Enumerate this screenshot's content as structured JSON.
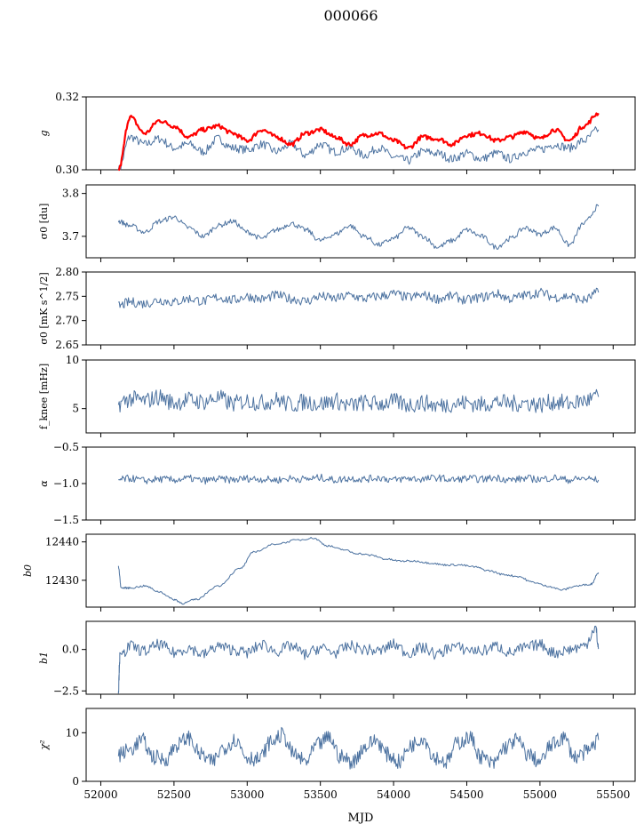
{
  "figure": {
    "title": "000066",
    "xlabel": "MJD"
  },
  "colors": {
    "series": "#4c72a0",
    "highlight": "#ff0000",
    "axis": "#000000"
  },
  "chart_data": [
    {
      "type": "line",
      "ylabel": "g",
      "ylim": [
        0.3,
        0.32
      ],
      "yticks": [
        "0.30",
        "0.32"
      ],
      "xlim": [
        51900,
        55650
      ],
      "series": [
        {
          "x": [
            52120,
            52200,
            52300,
            52400,
            52500,
            52600,
            52700,
            52800,
            52900,
            53000,
            53100,
            53200,
            53300,
            53400,
            53500,
            53600,
            53700,
            53800,
            53900,
            54000,
            54100,
            54200,
            54300,
            54400,
            54500,
            54600,
            54700,
            54800,
            54900,
            55000,
            55100,
            55200,
            55300,
            55400
          ],
          "y": [
            0.3,
            0.309,
            0.307,
            0.3085,
            0.306,
            0.307,
            0.305,
            0.3085,
            0.306,
            0.3055,
            0.307,
            0.305,
            0.307,
            0.304,
            0.307,
            0.305,
            0.306,
            0.304,
            0.306,
            0.3035,
            0.3025,
            0.305,
            0.3045,
            0.303,
            0.3045,
            0.303,
            0.3045,
            0.303,
            0.305,
            0.3055,
            0.307,
            0.306,
            0.308,
            0.311
          ]
        },
        {
          "x": [
            52120,
            52200,
            52300,
            52400,
            52500,
            52600,
            52700,
            52800,
            52900,
            53000,
            53100,
            53200,
            53300,
            53400,
            53500,
            53600,
            53700,
            53800,
            53900,
            54000,
            54100,
            54200,
            54300,
            54400,
            54500,
            54600,
            54700,
            54800,
            54900,
            55000,
            55100,
            55200,
            55300,
            55400
          ],
          "y": [
            0.3,
            0.3145,
            0.31,
            0.3135,
            0.312,
            0.309,
            0.311,
            0.312,
            0.31,
            0.308,
            0.311,
            0.309,
            0.307,
            0.31,
            0.311,
            0.309,
            0.307,
            0.3095,
            0.31,
            0.308,
            0.306,
            0.309,
            0.3085,
            0.307,
            0.3095,
            0.31,
            0.308,
            0.309,
            0.3105,
            0.3085,
            0.311,
            0.308,
            0.312,
            0.3155
          ]
        }
      ]
    },
    {
      "type": "line",
      "ylabel": "σ0 [du]",
      "ylim": [
        3.65,
        3.82
      ],
      "yticks": [
        "3.7",
        "3.8"
      ],
      "xlim": [
        51900,
        55650
      ],
      "series": [
        {
          "x": [
            52120,
            52200,
            52300,
            52400,
            52500,
            52600,
            52700,
            52800,
            52900,
            53000,
            53100,
            53200,
            53300,
            53400,
            53500,
            53600,
            53700,
            53800,
            53900,
            54000,
            54100,
            54200,
            54300,
            54400,
            54500,
            54600,
            54700,
            54800,
            54900,
            55000,
            55100,
            55200,
            55300,
            55400
          ],
          "y": [
            3.735,
            3.725,
            3.71,
            3.735,
            3.745,
            3.72,
            3.7,
            3.725,
            3.735,
            3.71,
            3.695,
            3.715,
            3.73,
            3.715,
            3.69,
            3.705,
            3.725,
            3.7,
            3.68,
            3.695,
            3.72,
            3.7,
            3.675,
            3.69,
            3.715,
            3.7,
            3.675,
            3.695,
            3.72,
            3.705,
            3.72,
            3.68,
            3.73,
            3.77
          ]
        }
      ]
    },
    {
      "type": "line",
      "ylabel": "σ0 [mK s^1/2]",
      "ylim": [
        2.65,
        2.8
      ],
      "yticks": [
        "2.65",
        "2.70",
        "2.75",
        "2.80"
      ],
      "xlim": [
        51900,
        55650
      ],
      "series": [
        {
          "x": [
            52120,
            52200,
            52300,
            52400,
            52500,
            52600,
            52700,
            52800,
            52900,
            53000,
            53100,
            53200,
            53300,
            53400,
            53500,
            53600,
            53700,
            53800,
            53900,
            54000,
            54100,
            54200,
            54300,
            54400,
            54500,
            54600,
            54700,
            54800,
            54900,
            55000,
            55100,
            55200,
            55300,
            55400
          ],
          "y": [
            2.73,
            2.738,
            2.735,
            2.742,
            2.738,
            2.745,
            2.74,
            2.748,
            2.742,
            2.75,
            2.744,
            2.752,
            2.745,
            2.74,
            2.75,
            2.745,
            2.752,
            2.745,
            2.75,
            2.755,
            2.748,
            2.752,
            2.745,
            2.75,
            2.742,
            2.748,
            2.755,
            2.745,
            2.752,
            2.758,
            2.748,
            2.75,
            2.742,
            2.758
          ]
        }
      ]
    },
    {
      "type": "line",
      "ylabel": "f_knee [mHz]",
      "ylim": [
        2.5,
        10
      ],
      "yticks": [
        "5",
        "10"
      ],
      "xlim": [
        51900,
        55650
      ],
      "series": [
        {
          "x": [
            52120,
            52200,
            52300,
            52400,
            52500,
            52600,
            52700,
            52800,
            52900,
            53000,
            53100,
            53200,
            53300,
            53400,
            53500,
            53600,
            53700,
            53800,
            53900,
            54000,
            54100,
            54200,
            54300,
            54400,
            54500,
            54600,
            54700,
            54800,
            54900,
            55000,
            55100,
            55200,
            55300,
            55400
          ],
          "y": [
            5.5,
            6.0,
            5.8,
            6.2,
            5.6,
            5.9,
            5.7,
            6.1,
            5.5,
            5.8,
            5.6,
            5.9,
            5.4,
            5.7,
            5.5,
            5.8,
            5.3,
            5.6,
            5.5,
            5.7,
            5.4,
            5.6,
            5.3,
            5.5,
            5.6,
            5.4,
            5.7,
            5.5,
            5.6,
            5.4,
            5.7,
            5.5,
            5.8,
            6.2
          ]
        }
      ]
    },
    {
      "type": "line",
      "ylabel": "α",
      "ylim": [
        -1.5,
        -0.5
      ],
      "yticks": [
        "−1.5",
        "−1.0",
        "−0.5"
      ],
      "xlim": [
        51900,
        55650
      ],
      "series": [
        {
          "x": [
            52120,
            52200,
            52300,
            52400,
            52500,
            52600,
            52700,
            52800,
            52900,
            53000,
            53100,
            53200,
            53300,
            53400,
            53500,
            53600,
            53700,
            53800,
            53900,
            54000,
            54100,
            54200,
            54300,
            54400,
            54500,
            54600,
            54700,
            54800,
            54900,
            55000,
            55100,
            55200,
            55300,
            55400
          ],
          "y": [
            -0.95,
            -0.93,
            -0.96,
            -0.94,
            -0.95,
            -0.93,
            -0.96,
            -0.94,
            -0.95,
            -0.93,
            -0.94,
            -0.95,
            -0.93,
            -0.94,
            -0.92,
            -0.95,
            -0.93,
            -0.94,
            -0.92,
            -0.95,
            -0.93,
            -0.94,
            -0.92,
            -0.95,
            -0.93,
            -0.94,
            -0.92,
            -0.95,
            -0.93,
            -0.94,
            -0.92,
            -0.95,
            -0.93,
            -0.95
          ]
        }
      ]
    },
    {
      "type": "line",
      "ylabel": "b0",
      "ylim": [
        12423,
        12442
      ],
      "yticks": [
        "12430",
        "12440"
      ],
      "xlim": [
        51900,
        55650
      ],
      "series": [
        {
          "x": [
            52120,
            52140,
            52200,
            52300,
            52400,
            52500,
            52560,
            52650,
            52800,
            52950,
            53050,
            53200,
            53350,
            53450,
            53550,
            53650,
            53750,
            53850,
            53950,
            54050,
            54150,
            54250,
            54350,
            54450,
            54550,
            54650,
            54750,
            54850,
            54950,
            55050,
            55150,
            55250,
            55350,
            55400
          ],
          "y": [
            12433.5,
            12428,
            12428,
            12428.5,
            12427,
            12425,
            12424,
            12425,
            12428.5,
            12433,
            12437.5,
            12439.5,
            12440.5,
            12441,
            12439,
            12438,
            12437,
            12436.5,
            12435.5,
            12435,
            12435,
            12434.5,
            12434,
            12434,
            12433.5,
            12432.5,
            12431.5,
            12431,
            12429.5,
            12428.5,
            12427.5,
            12428.5,
            12429,
            12432
          ]
        }
      ]
    },
    {
      "type": "line",
      "ylabel": "b1",
      "ylim": [
        -2.7,
        1.7
      ],
      "yticks": [
        "−2.5",
        "0.0"
      ],
      "xlim": [
        51900,
        55650
      ],
      "series": [
        {
          "x": [
            52120,
            52130,
            52200,
            52300,
            52400,
            52500,
            52600,
            52700,
            52800,
            52900,
            53000,
            53100,
            53200,
            53300,
            53400,
            53500,
            53600,
            53700,
            53800,
            53900,
            54000,
            54100,
            54200,
            54300,
            54400,
            54500,
            54600,
            54700,
            54800,
            54900,
            55000,
            55100,
            55200,
            55300,
            55380,
            55400
          ],
          "y": [
            -2.5,
            -0.5,
            0.2,
            -0.1,
            0.3,
            -0.2,
            0.1,
            -0.3,
            0.2,
            0.0,
            -0.2,
            0.3,
            -0.1,
            0.2,
            -0.3,
            0.1,
            -0.2,
            0.2,
            0.0,
            -0.1,
            0.3,
            -0.2,
            0.1,
            -0.3,
            0.2,
            0.0,
            -0.1,
            0.2,
            -0.2,
            0.1,
            0.3,
            -0.2,
            0.0,
            0.2,
            1.3,
            0.1
          ]
        }
      ]
    },
    {
      "type": "line",
      "ylabel": "χ²",
      "ylim": [
        0,
        15
      ],
      "yticks": [
        "0",
        "10"
      ],
      "xlim": [
        51900,
        55650
      ],
      "xticks": [
        "52000",
        "52500",
        "53000",
        "53500",
        "54000",
        "54500",
        "55000",
        "55500"
      ],
      "series": [
        {
          "x": [
            52120,
            52200,
            52280,
            52360,
            52440,
            52520,
            52600,
            52680,
            52760,
            52840,
            52920,
            53000,
            53080,
            53160,
            53240,
            53320,
            53400,
            53480,
            53560,
            53640,
            53720,
            53800,
            53880,
            53960,
            54040,
            54120,
            54200,
            54280,
            54360,
            54440,
            54520,
            54600,
            54680,
            54760,
            54840,
            54920,
            55000,
            55080,
            55160,
            55240,
            55320,
            55400
          ],
          "y": [
            5.5,
            6.5,
            8.5,
            5.0,
            4.5,
            7.5,
            9.0,
            5.5,
            4.0,
            7.0,
            8.5,
            5.0,
            4.5,
            8.0,
            9.5,
            5.5,
            4.0,
            7.5,
            9.0,
            5.0,
            4.0,
            7.0,
            8.5,
            5.5,
            4.0,
            7.5,
            9.0,
            5.0,
            4.0,
            8.0,
            9.0,
            5.0,
            3.5,
            7.0,
            8.5,
            5.5,
            4.0,
            7.5,
            9.0,
            5.0,
            6.0,
            8.5
          ]
        }
      ]
    }
  ]
}
